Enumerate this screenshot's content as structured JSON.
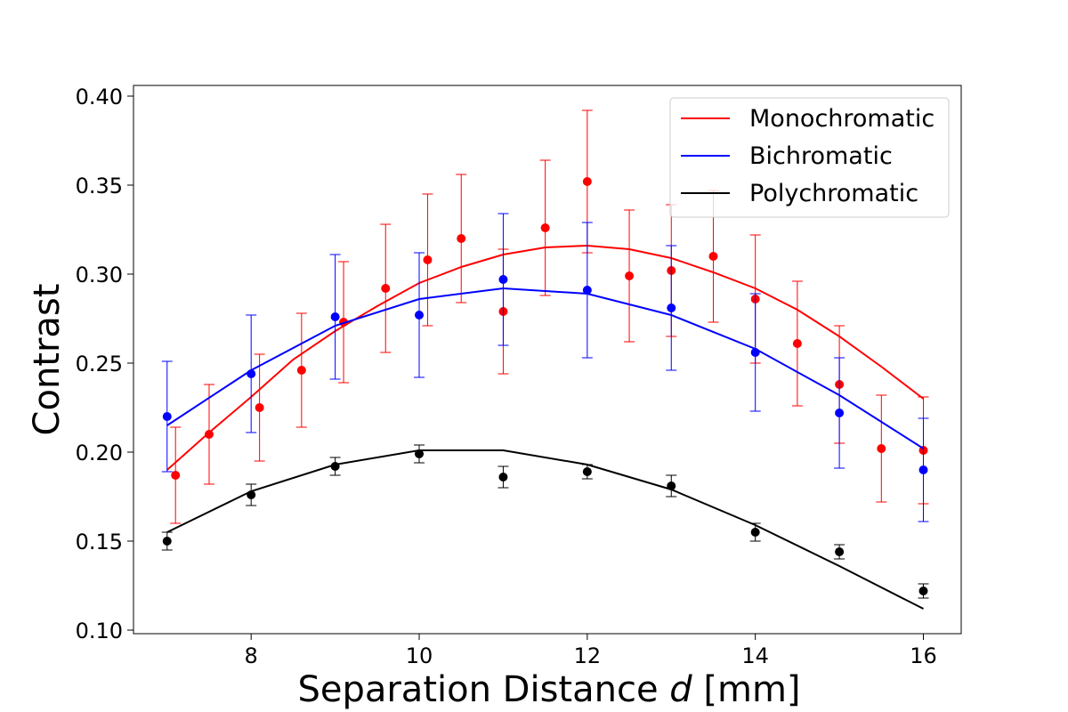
{
  "chart_data": {
    "type": "line",
    "title": "",
    "xlabel": "Separation Distance",
    "xlabel_var": "d",
    "xlabel_unit": "[mm]",
    "ylabel": "Contrast",
    "xlim": [
      6.6,
      16.45
    ],
    "ylim": [
      0.098,
      0.406
    ],
    "xticks": [
      8,
      10,
      12,
      14,
      16
    ],
    "yticks": [
      0.1,
      0.15,
      0.2,
      0.25,
      0.3,
      0.35,
      0.4
    ],
    "ytick_labels": [
      "0.10",
      "0.15",
      "0.20",
      "0.25",
      "0.30",
      "0.35",
      "0.40"
    ],
    "grid": false,
    "legend_position": "top-right",
    "series": [
      {
        "name": "Monochromatic",
        "color": "#ff0000",
        "fit_x": [
          7,
          7.5,
          8,
          8.5,
          9,
          9.5,
          10,
          10.5,
          11,
          11.5,
          12,
          12.5,
          13,
          13.5,
          14,
          14.5,
          15,
          15.5,
          16
        ],
        "fit_y": [
          0.19,
          0.211,
          0.231,
          0.252,
          0.268,
          0.282,
          0.295,
          0.304,
          0.311,
          0.315,
          0.316,
          0.314,
          0.309,
          0.301,
          0.292,
          0.28,
          0.265,
          0.248,
          0.23
        ],
        "points": [
          {
            "x": 7.1,
            "y": 0.187,
            "err": 0.027
          },
          {
            "x": 7.5,
            "y": 0.21,
            "err": 0.028
          },
          {
            "x": 8.1,
            "y": 0.225,
            "err": 0.03
          },
          {
            "x": 8.6,
            "y": 0.246,
            "err": 0.032
          },
          {
            "x": 9.1,
            "y": 0.273,
            "err": 0.034
          },
          {
            "x": 9.6,
            "y": 0.292,
            "err": 0.036
          },
          {
            "x": 10.1,
            "y": 0.308,
            "err": 0.037
          },
          {
            "x": 10.5,
            "y": 0.32,
            "err": 0.036
          },
          {
            "x": 11.0,
            "y": 0.279,
            "err": 0.035
          },
          {
            "x": 11.5,
            "y": 0.326,
            "err": 0.038
          },
          {
            "x": 12.0,
            "y": 0.352,
            "err": 0.04
          },
          {
            "x": 12.5,
            "y": 0.299,
            "err": 0.037
          },
          {
            "x": 13.0,
            "y": 0.302,
            "err": 0.037
          },
          {
            "x": 13.5,
            "y": 0.31,
            "err": 0.037
          },
          {
            "x": 14.0,
            "y": 0.286,
            "err": 0.036
          },
          {
            "x": 14.5,
            "y": 0.261,
            "err": 0.035
          },
          {
            "x": 15.0,
            "y": 0.238,
            "err": 0.033
          },
          {
            "x": 15.5,
            "y": 0.202,
            "err": 0.03
          },
          {
            "x": 16.0,
            "y": 0.201,
            "err": 0.03
          }
        ]
      },
      {
        "name": "Bichromatic",
        "color": "#0000ff",
        "fit_x": [
          7,
          8,
          9,
          10,
          11,
          12,
          13,
          14,
          15,
          16
        ],
        "fit_y": [
          0.215,
          0.246,
          0.271,
          0.286,
          0.292,
          0.289,
          0.277,
          0.258,
          0.232,
          0.202
        ],
        "points": [
          {
            "x": 7,
            "y": 0.22,
            "err": 0.031
          },
          {
            "x": 8,
            "y": 0.244,
            "err": 0.033
          },
          {
            "x": 9,
            "y": 0.276,
            "err": 0.035
          },
          {
            "x": 10,
            "y": 0.277,
            "err": 0.035
          },
          {
            "x": 11,
            "y": 0.297,
            "err": 0.037
          },
          {
            "x": 12,
            "y": 0.291,
            "err": 0.038
          },
          {
            "x": 13,
            "y": 0.281,
            "err": 0.035
          },
          {
            "x": 14,
            "y": 0.256,
            "err": 0.033
          },
          {
            "x": 15,
            "y": 0.222,
            "err": 0.031
          },
          {
            "x": 16,
            "y": 0.19,
            "err": 0.029
          }
        ]
      },
      {
        "name": "Polychromatic",
        "color": "#000000",
        "fit_x": [
          7,
          8,
          9,
          10,
          11,
          12,
          13,
          14,
          15,
          16
        ],
        "fit_y": [
          0.155,
          0.178,
          0.193,
          0.201,
          0.201,
          0.193,
          0.179,
          0.159,
          0.136,
          0.112
        ],
        "points": [
          {
            "x": 7,
            "y": 0.15,
            "err": 0.005
          },
          {
            "x": 8,
            "y": 0.176,
            "err": 0.006
          },
          {
            "x": 9,
            "y": 0.192,
            "err": 0.005
          },
          {
            "x": 10,
            "y": 0.199,
            "err": 0.005
          },
          {
            "x": 11,
            "y": 0.186,
            "err": 0.006
          },
          {
            "x": 12,
            "y": 0.189,
            "err": 0.004
          },
          {
            "x": 13,
            "y": 0.181,
            "err": 0.006
          },
          {
            "x": 14,
            "y": 0.155,
            "err": 0.005
          },
          {
            "x": 15,
            "y": 0.144,
            "err": 0.004
          },
          {
            "x": 16,
            "y": 0.122,
            "err": 0.004
          }
        ]
      }
    ]
  }
}
